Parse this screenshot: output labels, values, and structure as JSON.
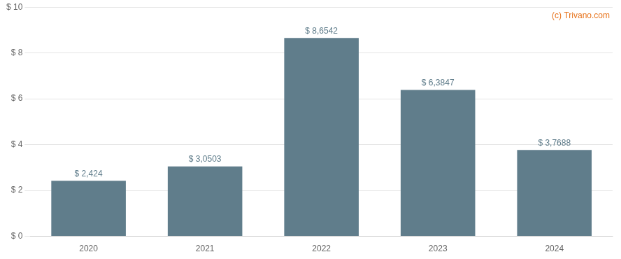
{
  "chart_data": {
    "type": "bar",
    "categories": [
      "2020",
      "2021",
      "2022",
      "2023",
      "2024"
    ],
    "values": [
      2.424,
      3.0503,
      8.6542,
      6.3847,
      3.7688
    ],
    "value_labels": [
      "$ 2,424",
      "$ 3,0503",
      "$ 8,6542",
      "$ 6,3847",
      "$ 3,7688"
    ],
    "data_labels": true,
    "color": "#607d8b",
    "ylim": [
      0,
      10
    ],
    "yticks": [
      {
        "value": 0,
        "label": "$ 0"
      },
      {
        "value": 2,
        "label": "$ 2"
      },
      {
        "value": 4,
        "label": "$ 4"
      },
      {
        "value": 6,
        "label": "$ 6"
      },
      {
        "value": 8,
        "label": "$ 8"
      },
      {
        "value": 10,
        "label": "$ 10"
      }
    ],
    "grid": true,
    "annotations": [
      {
        "text": "(c) Trivano.com",
        "color": "#e87722"
      }
    ]
  }
}
